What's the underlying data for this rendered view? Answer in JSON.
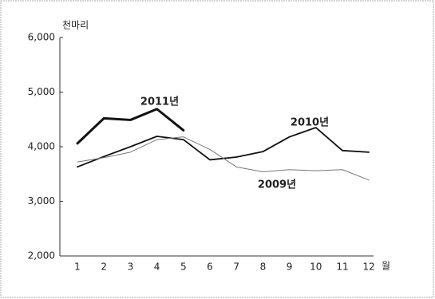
{
  "chart_data": {
    "type": "line",
    "y_label": "천마리",
    "x_label": "월",
    "categories": [
      "1",
      "2",
      "3",
      "4",
      "5",
      "6",
      "7",
      "8",
      "9",
      "10",
      "11",
      "12"
    ],
    "series": [
      {
        "name": "2011년",
        "color": "#111111",
        "width": 3,
        "values": [
          4060,
          4520,
          4490,
          4690,
          4300,
          null,
          null,
          null,
          null,
          null,
          null,
          null
        ]
      },
      {
        "name": "2010년",
        "color": "#111111",
        "width": 1.8,
        "values": [
          3630,
          3820,
          4000,
          4190,
          4130,
          3760,
          3810,
          3910,
          4180,
          4350,
          3930,
          3900
        ]
      },
      {
        "name": "2009년",
        "color": "#777777",
        "width": 1,
        "values": [
          3720,
          3800,
          3900,
          4130,
          4180,
          3950,
          3630,
          3540,
          3580,
          3560,
          3580,
          3390
        ]
      }
    ],
    "ylim": [
      2000,
      6000
    ],
    "yticks": [
      {
        "value": 2000,
        "label": "2,000"
      },
      {
        "value": 3000,
        "label": "3,000"
      },
      {
        "value": 4000,
        "label": "4,000"
      },
      {
        "value": 5000,
        "label": "5,000"
      },
      {
        "value": 6000,
        "label": "6,000"
      }
    ],
    "grid": false
  }
}
